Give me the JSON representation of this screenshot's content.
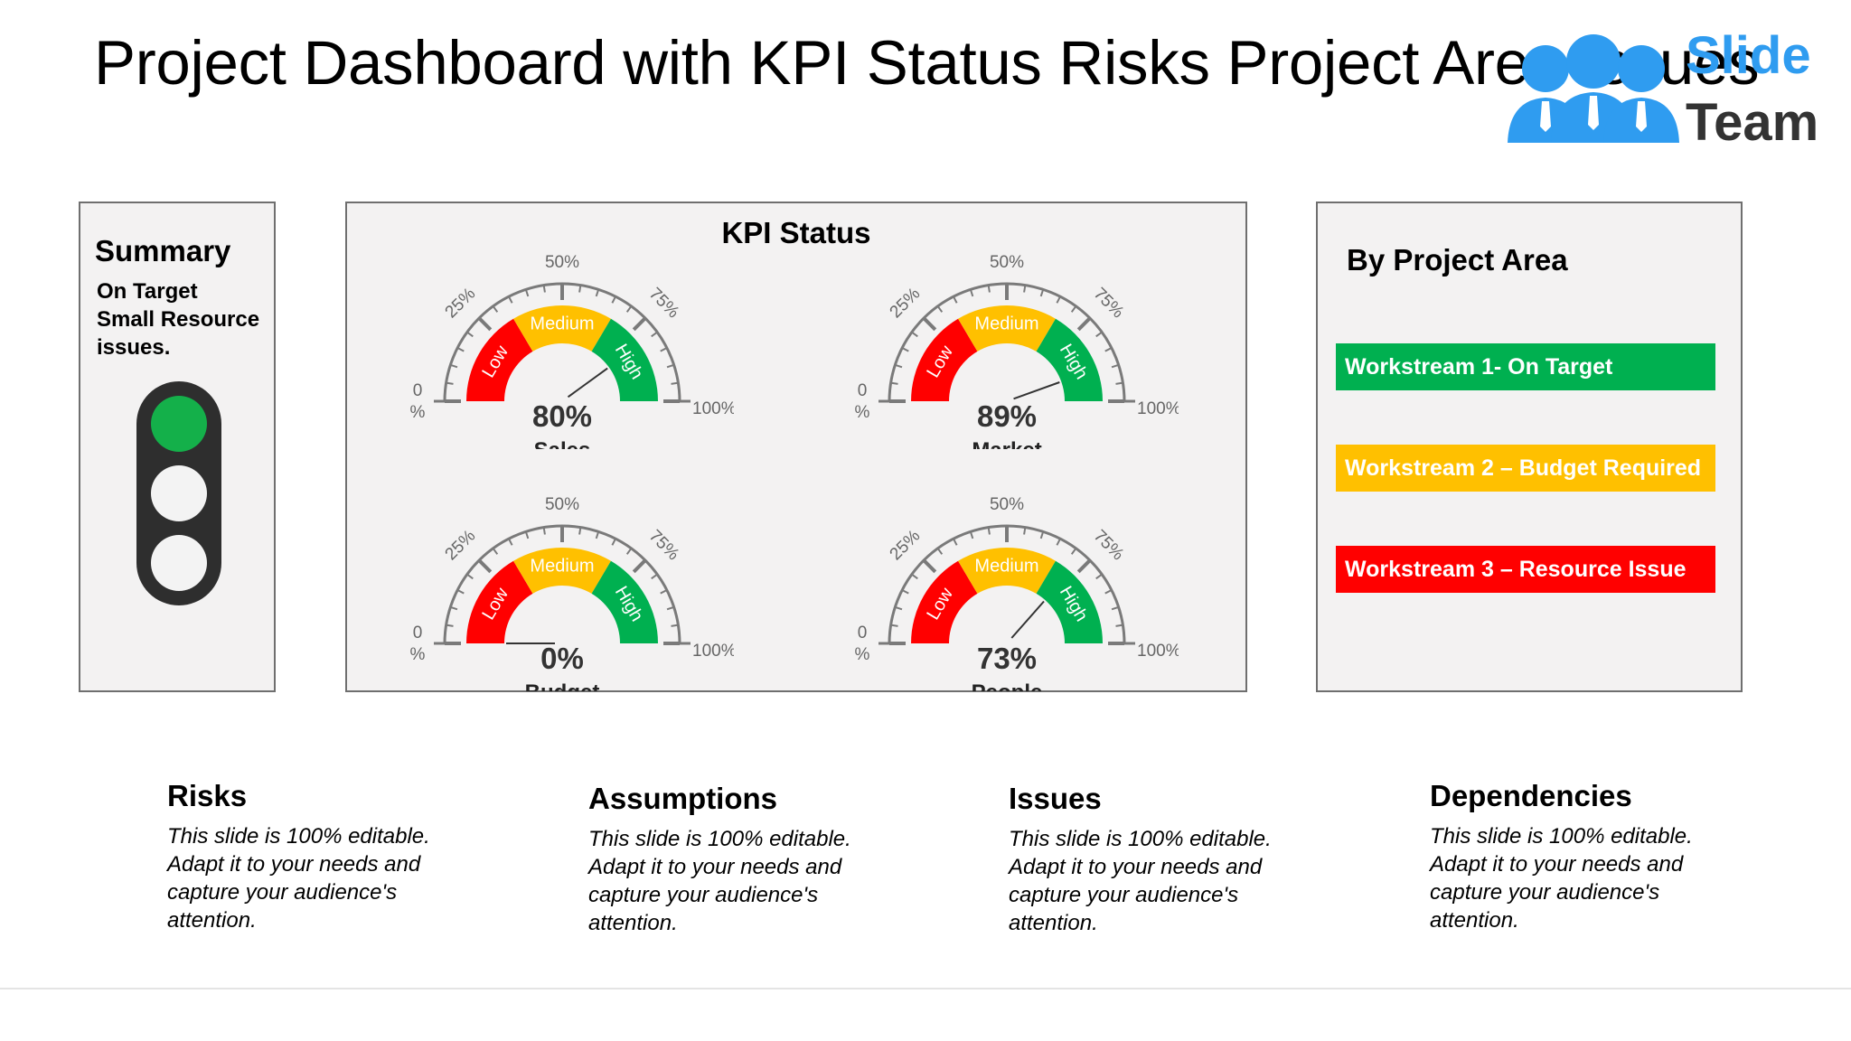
{
  "page": {
    "title": "Project Dashboard with KPI Status Risks Project Area Issues"
  },
  "logo": {
    "line1": "Slide",
    "line2": "Team",
    "color": "#2f9cf0"
  },
  "summary": {
    "heading": "Summary",
    "status_line1": "On Target",
    "status_line2": "Small Resource issues.",
    "traffic_light": {
      "active": "top",
      "active_color": "#14b04a"
    }
  },
  "kpi": {
    "heading": "KPI Status",
    "band_labels": [
      "Low",
      "Medium",
      "High"
    ],
    "band_colors": [
      "#ff0000",
      "#ffc000",
      "#00b050"
    ],
    "scale": {
      "p0": "0",
      "p0_unit": "%",
      "p25": "25%",
      "p50": "50%",
      "p75": "75%",
      "p100": "100%"
    },
    "gauges": [
      {
        "value": 80,
        "value_label": "80%",
        "name": "Sales"
      },
      {
        "value": 89,
        "value_label": "89%",
        "name": "Market"
      },
      {
        "value": 0,
        "value_label": "0%",
        "name": "Budget"
      },
      {
        "value": 73,
        "value_label": "73%",
        "name": "People"
      }
    ]
  },
  "project_area": {
    "heading": "By Project Area",
    "workstreams": [
      {
        "label": "Workstream 1- On Target",
        "color": "#00b050"
      },
      {
        "label": "Workstream 2 – Budget Required",
        "color": "#ffc000"
      },
      {
        "label": "Workstream 3 – Resource Issue",
        "color": "#ff0000"
      }
    ]
  },
  "sections": [
    {
      "heading": "Risks",
      "body": "This slide is 100% editable. Adapt it to your needs and capture your audience's attention."
    },
    {
      "heading": "Assumptions",
      "body": "This slide is 100% editable. Adapt it to your needs and capture your audience's attention."
    },
    {
      "heading": "Issues",
      "body": "This slide is 100% editable. Adapt it to your needs and capture your audience's attention."
    },
    {
      "heading": "Dependencies",
      "body": "This slide is 100% editable. Adapt it to your needs and capture your audience's attention."
    }
  ]
}
